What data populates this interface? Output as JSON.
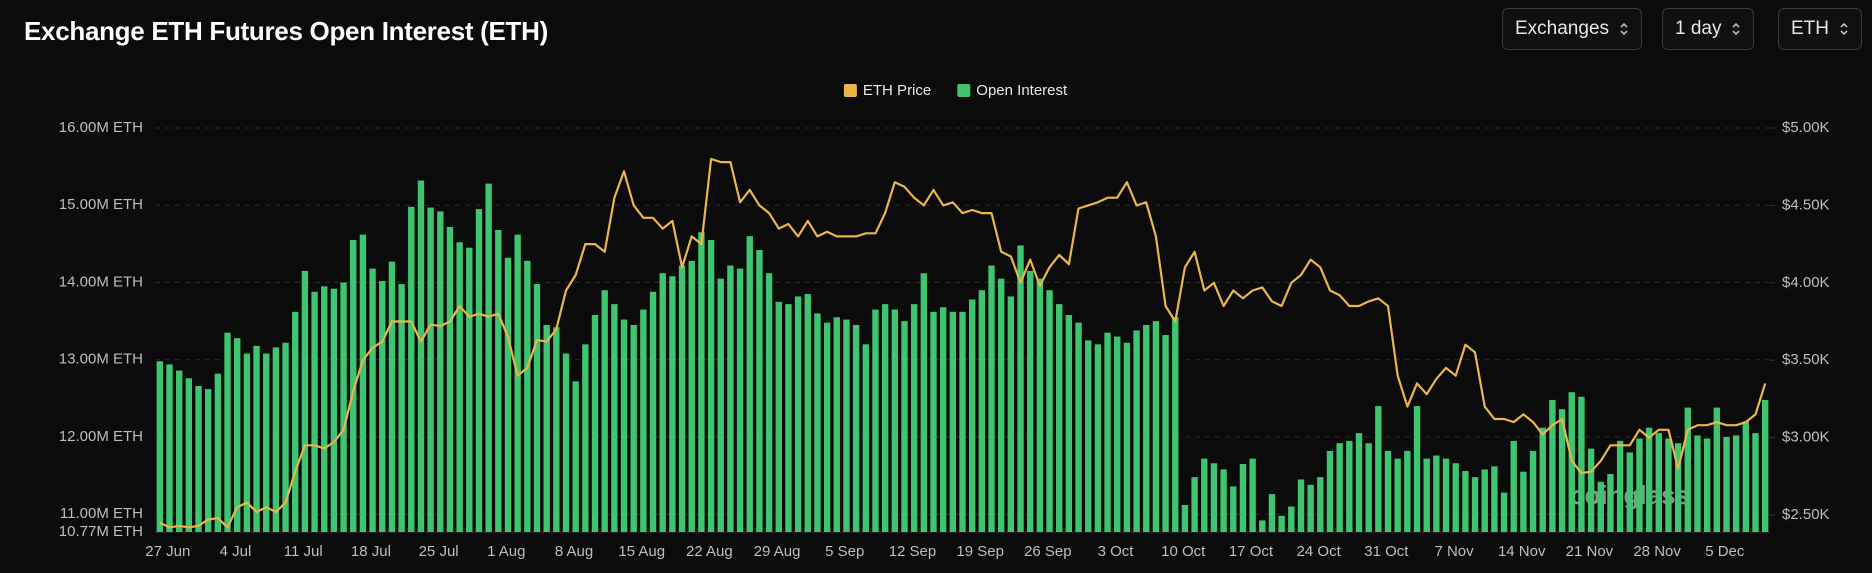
{
  "controls": [
    "Exchanges",
    "1 day",
    "ETH"
  ],
  "watermark": "coinglass",
  "chart_data": {
    "type": "bar_line",
    "title": "Exchange ETH Futures Open Interest (ETH)",
    "categories": [
      "27 Jun",
      null,
      null,
      null,
      null,
      null,
      null,
      "4 Jul",
      null,
      null,
      null,
      null,
      null,
      null,
      "11 Jul",
      null,
      null,
      null,
      null,
      null,
      null,
      "18 Jul",
      null,
      null,
      null,
      null,
      null,
      null,
      "25 Jul",
      null,
      null,
      null,
      null,
      null,
      null,
      "1 Aug",
      null,
      null,
      null,
      null,
      null,
      null,
      "8 Aug",
      null,
      null,
      null,
      null,
      null,
      null,
      "15 Aug",
      null,
      null,
      null,
      null,
      null,
      null,
      "22 Aug",
      null,
      null,
      null,
      null,
      null,
      null,
      "29 Aug",
      null,
      null,
      null,
      null,
      null,
      null,
      "5 Sep",
      null,
      null,
      null,
      null,
      null,
      null,
      "12 Sep",
      null,
      null,
      null,
      null,
      null,
      null,
      "19 Sep",
      null,
      null,
      null,
      null,
      null,
      null,
      "26 Sep",
      null,
      null,
      null,
      null,
      null,
      null,
      "3 Oct",
      null,
      null,
      null,
      null,
      null,
      null,
      "10 Oct",
      null,
      null,
      null,
      null,
      null,
      null,
      "17 Oct",
      null,
      null,
      null,
      null,
      null,
      null,
      "24 Oct",
      null,
      null,
      null,
      null,
      null,
      null,
      "31 Oct",
      null,
      null,
      null,
      null,
      null,
      null,
      "7 Nov",
      null,
      null,
      null,
      null,
      null,
      null,
      "14 Nov",
      null,
      null,
      null,
      null,
      null,
      null,
      "21 Nov",
      null,
      null,
      null,
      null,
      null,
      null,
      "28 Nov",
      null,
      null,
      null,
      null,
      null,
      null,
      "5 Dec",
      null,
      null,
      null,
      null,
      null
    ],
    "series": [
      {
        "name": "ETH Price",
        "type": "line",
        "axis": "y2",
        "color": "#e8b64a",
        "values": [
          2.45,
          2.42,
          2.43,
          2.42,
          2.43,
          2.47,
          2.48,
          2.42,
          2.55,
          2.58,
          2.52,
          2.55,
          2.52,
          2.58,
          2.78,
          2.95,
          2.95,
          2.93,
          2.97,
          3.05,
          3.3,
          3.5,
          3.58,
          3.62,
          3.75,
          3.75,
          3.75,
          3.62,
          3.73,
          3.72,
          3.75,
          3.85,
          3.78,
          3.8,
          3.78,
          3.8,
          3.65,
          3.4,
          3.45,
          3.63,
          3.62,
          3.7,
          3.95,
          4.05,
          4.25,
          4.25,
          4.2,
          4.55,
          4.72,
          4.5,
          4.42,
          4.42,
          4.35,
          4.4,
          4.1,
          4.3,
          4.25,
          4.8,
          4.78,
          4.78,
          4.52,
          4.6,
          4.5,
          4.45,
          4.35,
          4.38,
          4.3,
          4.4,
          4.3,
          4.33,
          4.3,
          4.3,
          4.3,
          4.32,
          4.32,
          4.45,
          4.65,
          4.62,
          4.55,
          4.5,
          4.6,
          4.5,
          4.52,
          4.45,
          4.47,
          4.45,
          4.45,
          4.2,
          4.17,
          4.0,
          4.15,
          3.98,
          4.1,
          4.18,
          4.12,
          4.48,
          4.5,
          4.52,
          4.55,
          4.55,
          4.65,
          4.5,
          4.52,
          4.3,
          3.85,
          3.75,
          4.1,
          4.2,
          3.95,
          4.0,
          3.85,
          3.95,
          3.9,
          3.95,
          3.97,
          3.88,
          3.85,
          4.0,
          4.05,
          4.15,
          4.1,
          3.95,
          3.92,
          3.85,
          3.85,
          3.88,
          3.9,
          3.85,
          3.4,
          3.2,
          3.35,
          3.28,
          3.38,
          3.45,
          3.4,
          3.6,
          3.55,
          3.2,
          3.12,
          3.12,
          3.1,
          3.15,
          3.1,
          3.02,
          3.08,
          3.12,
          2.85,
          2.77,
          2.78,
          2.85,
          2.95,
          2.95,
          2.95,
          3.05,
          3.0,
          3.05,
          3.05,
          2.8,
          3.05,
          3.08,
          3.08,
          3.1,
          3.08,
          3.08,
          3.1,
          3.15,
          3.35
        ]
      },
      {
        "name": "Open Interest",
        "type": "bar",
        "color": "#3fc470",
        "values": [
          12.98,
          12.94,
          12.86,
          12.76,
          12.66,
          12.62,
          12.82,
          13.35,
          13.28,
          13.08,
          13.18,
          13.08,
          13.16,
          13.22,
          13.62,
          14.15,
          13.88,
          13.95,
          13.92,
          14.0,
          14.55,
          14.62,
          14.18,
          14.02,
          14.27,
          13.98,
          14.98,
          15.32,
          14.97,
          14.92,
          14.72,
          14.52,
          14.45,
          14.95,
          15.28,
          14.68,
          14.32,
          14.62,
          14.28,
          13.98,
          13.45,
          13.42,
          13.08,
          12.72,
          13.2,
          13.58,
          13.9,
          13.72,
          13.52,
          13.45,
          13.65,
          13.88,
          14.12,
          14.08,
          14.22,
          14.28,
          14.65,
          14.55,
          14.05,
          14.22,
          14.18,
          14.6,
          14.42,
          14.12,
          13.75,
          13.72,
          13.82,
          13.85,
          13.6,
          13.48,
          13.55,
          13.52,
          13.45,
          13.2,
          13.65,
          13.72,
          13.65,
          13.5,
          13.72,
          14.12,
          13.62,
          13.68,
          13.62,
          13.62,
          13.78,
          13.9,
          14.22,
          14.05,
          13.82,
          14.48,
          14.15,
          14.05,
          13.9,
          13.72,
          13.58,
          13.48,
          13.25,
          13.2,
          13.35,
          13.3,
          13.22,
          13.38,
          13.45,
          13.5,
          13.32,
          13.55,
          11.12,
          11.48,
          11.72,
          11.66,
          11.58,
          11.36,
          11.65,
          11.72,
          10.92,
          11.26,
          10.98,
          11.1,
          11.45,
          11.38,
          11.48,
          11.82,
          11.92,
          11.95,
          12.05,
          11.92,
          12.4,
          11.82,
          11.72,
          11.82,
          12.4,
          11.72,
          11.76,
          11.72,
          11.66,
          11.56,
          11.48,
          11.58,
          11.62,
          11.28,
          11.95,
          11.55,
          11.82,
          12.12,
          12.48,
          12.36,
          12.58,
          12.52,
          11.85,
          11.42,
          11.52,
          11.95,
          11.8,
          11.98,
          12.12,
          12.05,
          11.98,
          11.92,
          12.38,
          12.02,
          11.98,
          12.38,
          12.0,
          12.02,
          12.2,
          12.05,
          12.48
        ]
      }
    ],
    "ylim": [
      10.77,
      16
    ],
    "yticks": [
      {
        "value": 10.77,
        "label": "10.77M ETH"
      },
      {
        "value": 11,
        "label": "11.00M ETH"
      },
      {
        "value": 12,
        "label": "12.00M ETH"
      },
      {
        "value": 13,
        "label": "13.00M ETH"
      },
      {
        "value": 14,
        "label": "14.00M ETH"
      },
      {
        "value": 15,
        "label": "15.00M ETH"
      },
      {
        "value": 16,
        "label": "16.00M ETH"
      }
    ],
    "y2lim": [
      2.39,
      5
    ],
    "y2ticks": [
      {
        "value": 2.5,
        "label": "$2.50K"
      },
      {
        "value": 3,
        "label": "$3.00K"
      },
      {
        "value": 3.5,
        "label": "$3.50K"
      },
      {
        "value": 4,
        "label": "$4.00K"
      },
      {
        "value": 4.5,
        "label": "$4.50K"
      },
      {
        "value": 5,
        "label": "$5.00K"
      }
    ],
    "grid": true,
    "legend": "top"
  }
}
